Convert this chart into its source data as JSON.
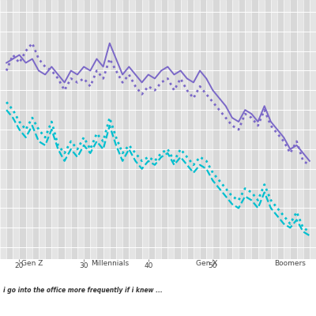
{
  "x_label_text": "i go into the office more frequently if i knew ...",
  "generation_labels": [
    {
      "text": "Gen Z",
      "x": 22
    },
    {
      "text": "Millennials",
      "x": 34
    },
    {
      "text": "Gen X",
      "x": 49
    },
    {
      "text": "Boomers",
      "x": 62
    }
  ],
  "age_ticks": [
    20,
    30,
    40,
    50
  ],
  "xlim": [
    17,
    66
  ],
  "ylim": [
    0.22,
    0.88
  ],
  "bg_light": "#e8e8e8",
  "bg_dark": "#d4d4d4",
  "work_friends": {
    "x": [
      18,
      19,
      20,
      21,
      22,
      23,
      24,
      25,
      26,
      27,
      28,
      29,
      30,
      31,
      32,
      33,
      34,
      35,
      36,
      37,
      38,
      39,
      40,
      41,
      42,
      43,
      44,
      45,
      46,
      47,
      48,
      49,
      50,
      51,
      52,
      53,
      54,
      55,
      56,
      57,
      58,
      59,
      60,
      61,
      62,
      63,
      64,
      65
    ],
    "y": [
      0.72,
      0.73,
      0.74,
      0.72,
      0.73,
      0.7,
      0.69,
      0.71,
      0.69,
      0.67,
      0.7,
      0.69,
      0.71,
      0.7,
      0.73,
      0.71,
      0.77,
      0.73,
      0.69,
      0.71,
      0.69,
      0.67,
      0.69,
      0.68,
      0.7,
      0.71,
      0.69,
      0.7,
      0.68,
      0.67,
      0.7,
      0.68,
      0.65,
      0.63,
      0.61,
      0.58,
      0.57,
      0.6,
      0.59,
      0.57,
      0.61,
      0.57,
      0.55,
      0.53,
      0.5,
      0.51,
      0.49,
      0.47
    ]
  },
  "direct_team": {
    "x": [
      18,
      19,
      20,
      21,
      22,
      23,
      24,
      25,
      26,
      27,
      28,
      29,
      30,
      31,
      32,
      33,
      34,
      35,
      36,
      37,
      38,
      39,
      40,
      41,
      42,
      43,
      44,
      45,
      46,
      47,
      48,
      49,
      50,
      51,
      52,
      53,
      54,
      55,
      56,
      57,
      58,
      59,
      60,
      61,
      62,
      63,
      64,
      65
    ],
    "y": [
      0.7,
      0.74,
      0.72,
      0.75,
      0.77,
      0.73,
      0.71,
      0.7,
      0.68,
      0.65,
      0.68,
      0.67,
      0.68,
      0.66,
      0.7,
      0.68,
      0.73,
      0.7,
      0.67,
      0.69,
      0.66,
      0.64,
      0.66,
      0.65,
      0.67,
      0.68,
      0.65,
      0.68,
      0.65,
      0.63,
      0.66,
      0.64,
      0.62,
      0.6,
      0.58,
      0.56,
      0.55,
      0.59,
      0.58,
      0.56,
      0.6,
      0.56,
      0.54,
      0.52,
      0.49,
      0.52,
      0.47,
      0.46
    ]
  },
  "imm_manager": {
    "x": [
      18,
      19,
      20,
      21,
      22,
      23,
      24,
      25,
      26,
      27,
      28,
      29,
      30,
      31,
      32,
      33,
      34,
      35,
      36,
      37,
      38,
      39,
      40,
      41,
      42,
      43,
      44,
      45,
      46,
      47,
      48,
      49,
      50,
      51,
      52,
      53,
      54,
      55,
      56,
      57,
      58,
      59,
      60,
      61,
      62,
      63,
      64,
      65
    ],
    "y": [
      0.62,
      0.6,
      0.57,
      0.55,
      0.58,
      0.55,
      0.53,
      0.57,
      0.51,
      0.49,
      0.52,
      0.5,
      0.53,
      0.5,
      0.54,
      0.52,
      0.58,
      0.53,
      0.49,
      0.51,
      0.49,
      0.47,
      0.48,
      0.47,
      0.49,
      0.5,
      0.47,
      0.5,
      0.48,
      0.46,
      0.48,
      0.47,
      0.44,
      0.42,
      0.4,
      0.38,
      0.37,
      0.4,
      0.39,
      0.37,
      0.41,
      0.37,
      0.35,
      0.33,
      0.31,
      0.34,
      0.3,
      0.29
    ]
  },
  "senior_leadership": {
    "x": [
      18,
      19,
      20,
      21,
      22,
      23,
      24,
      25,
      26,
      27,
      28,
      29,
      30,
      31,
      32,
      33,
      34,
      35,
      36,
      37,
      38,
      39,
      40,
      41,
      42,
      43,
      44,
      45,
      46,
      47,
      48,
      49,
      50,
      51,
      52,
      53,
      54,
      55,
      56,
      57,
      58,
      59,
      60,
      61,
      62,
      63,
      64,
      65
    ],
    "y": [
      0.6,
      0.58,
      0.55,
      0.53,
      0.56,
      0.52,
      0.51,
      0.55,
      0.5,
      0.47,
      0.5,
      0.48,
      0.51,
      0.49,
      0.52,
      0.5,
      0.56,
      0.51,
      0.47,
      0.5,
      0.47,
      0.45,
      0.47,
      0.46,
      0.48,
      0.49,
      0.46,
      0.48,
      0.46,
      0.44,
      0.46,
      0.45,
      0.42,
      0.4,
      0.38,
      0.36,
      0.35,
      0.38,
      0.37,
      0.35,
      0.39,
      0.35,
      0.33,
      0.31,
      0.3,
      0.32,
      0.29,
      0.28
    ]
  }
}
